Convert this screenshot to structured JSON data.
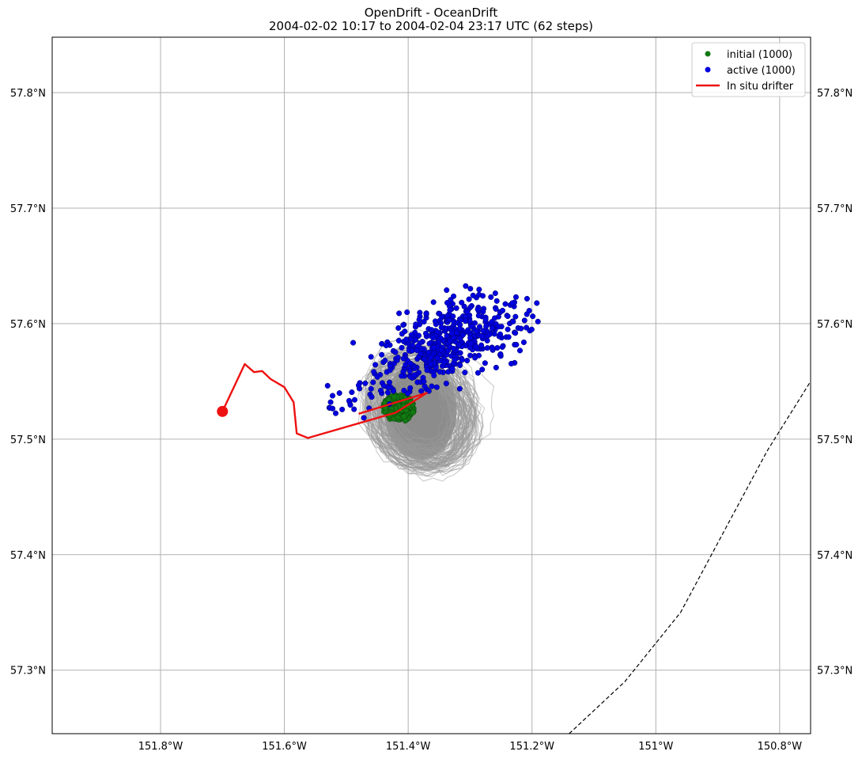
{
  "chart_data": {
    "type": "scatter",
    "title": "OpenDrift - OceanDrift",
    "subtitle": "2004-02-02 10:17 to 2004-02-04 23:17 UTC (62 steps)",
    "xlim": [
      -151.975,
      -150.75
    ],
    "ylim": [
      57.245,
      57.848
    ],
    "x_ticks": [
      {
        "value": -151.8,
        "label": "151.8°W"
      },
      {
        "value": -151.6,
        "label": "151.6°W"
      },
      {
        "value": -151.4,
        "label": "151.4°W"
      },
      {
        "value": -151.2,
        "label": "151.2°W"
      },
      {
        "value": -151.0,
        "label": "151°W"
      },
      {
        "value": -150.8,
        "label": "150.8°W"
      }
    ],
    "y_ticks": [
      {
        "value": 57.3,
        "label": "57.3°N"
      },
      {
        "value": 57.4,
        "label": "57.4°N"
      },
      {
        "value": 57.5,
        "label": "57.5°N"
      },
      {
        "value": 57.6,
        "label": "57.6°N"
      },
      {
        "value": 57.7,
        "label": "57.7°N"
      },
      {
        "value": 57.8,
        "label": "57.8°N"
      }
    ],
    "grid": true,
    "legend_position": "top-right",
    "legend": [
      {
        "label": "initial (1000)",
        "kind": "dot",
        "color": "#127a12"
      },
      {
        "label": "active (1000)",
        "kind": "dot",
        "color": "#0000e0"
      },
      {
        "label": "In situ drifter",
        "kind": "line",
        "color": "#ee1111"
      }
    ],
    "initial": {
      "name": "initial (1000)",
      "color": "#127a12",
      "center": [
        -151.415,
        57.527
      ],
      "radius": [
        0.025,
        0.012
      ]
    },
    "active": {
      "name": "active (1000)",
      "color": "#0000e0",
      "center": [
        -151.335,
        57.585
      ],
      "spread": [
        0.06,
        0.018
      ],
      "tail_start": [
        -151.52,
        57.525
      ],
      "tail_end": [
        -151.2,
        57.61
      ]
    },
    "trajectories": {
      "color": "#888888",
      "center": [
        -151.38,
        57.525
      ],
      "radius": [
        0.075,
        0.05
      ]
    },
    "drifter": {
      "name": "In situ drifter",
      "color": "#ee1111",
      "start": [
        -151.7,
        57.524
      ],
      "path": [
        [
          -151.7,
          57.524
        ],
        [
          -151.664,
          57.565
        ],
        [
          -151.649,
          57.558
        ],
        [
          -151.636,
          57.559
        ],
        [
          -151.622,
          57.552
        ],
        [
          -151.6,
          57.545
        ],
        [
          -151.585,
          57.532
        ],
        [
          -151.58,
          57.505
        ],
        [
          -151.562,
          57.501
        ],
        [
          -151.42,
          57.523
        ],
        [
          -151.37,
          57.54
        ],
        [
          -151.48,
          57.522
        ]
      ]
    },
    "boundary": {
      "color": "#000000",
      "path": [
        [
          -151.14,
          57.245
        ],
        [
          -151.05,
          57.29
        ],
        [
          -150.96,
          57.35
        ],
        [
          -150.88,
          57.43
        ],
        [
          -150.82,
          57.49
        ],
        [
          -150.75,
          57.55
        ]
      ]
    }
  }
}
